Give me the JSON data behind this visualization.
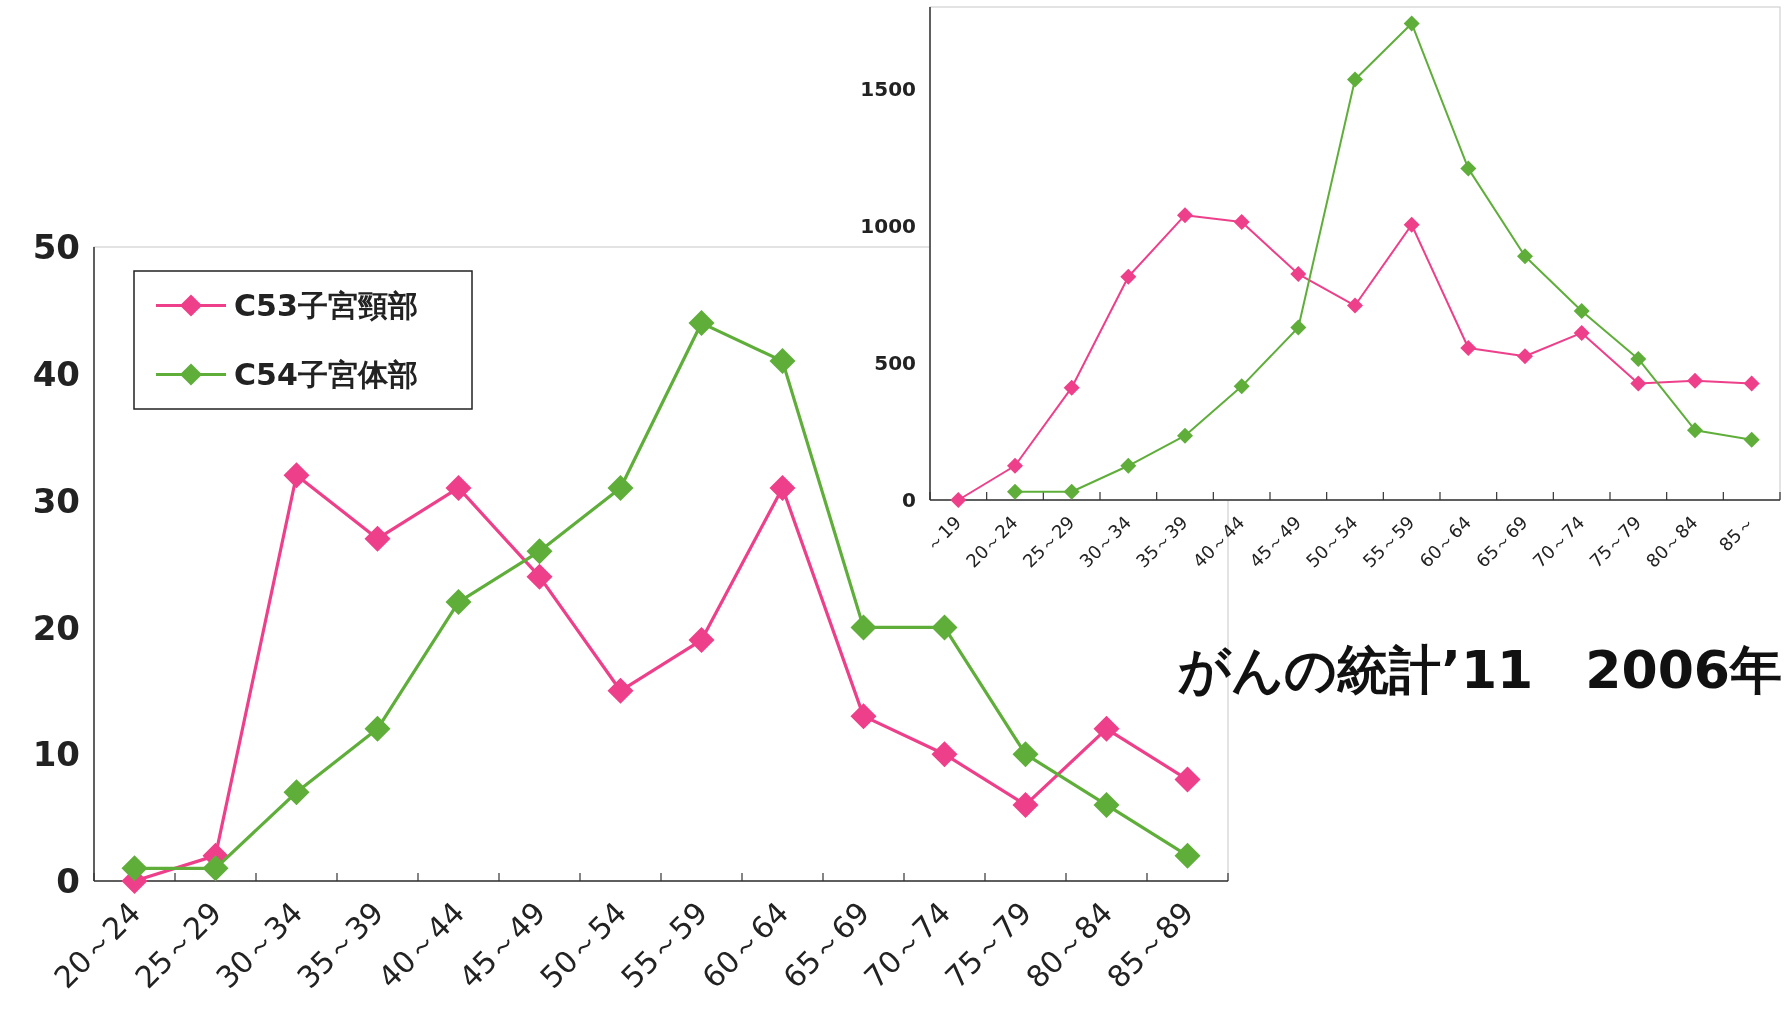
{
  "chart_data": [
    {
      "type": "line",
      "categories": [
        "20～24",
        "25～29",
        "30～34",
        "35～39",
        "40～44",
        "45～49",
        "50～54",
        "55～59",
        "60～64",
        "65～69",
        "70～74",
        "75～79",
        "80～84",
        "85～89"
      ],
      "series": [
        {
          "name": "C53子宮頸部",
          "color": "#ee3f8a",
          "values": [
            0,
            2,
            32,
            27,
            31,
            24,
            15,
            19,
            31,
            13,
            10,
            6,
            12,
            8
          ]
        },
        {
          "name": "C54子宮体部",
          "color": "#5fae3a",
          "values": [
            1,
            1,
            7,
            12,
            22,
            26,
            31,
            44,
            41,
            20,
            20,
            10,
            6,
            2
          ]
        }
      ],
      "ylim": [
        0,
        50
      ],
      "yticks": [
        0,
        10,
        20,
        30,
        40,
        50
      ],
      "legend": "top left",
      "marker": "diamond"
    },
    {
      "type": "line",
      "categories": [
        "～19",
        "20～24",
        "25～29",
        "30～34",
        "35～39",
        "40～44",
        "45～49",
        "50～54",
        "55～59",
        "60～64",
        "65～69",
        "70～74",
        "75～79",
        "80～84",
        "85～"
      ],
      "series": [
        {
          "color": "#ee3f8a",
          "values": [
            0,
            125,
            410,
            815,
            1040,
            1015,
            825,
            710,
            1005,
            555,
            525,
            610,
            425,
            435,
            425
          ]
        },
        {
          "color": "#5fae3a",
          "values": [
            null,
            30,
            30,
            125,
            235,
            415,
            630,
            1535,
            1740,
            1210,
            890,
            690,
            515,
            255,
            220
          ]
        }
      ],
      "ylim": [
        0,
        1800
      ],
      "yticks": [
        0,
        500,
        1000,
        1500
      ],
      "marker": "diamond",
      "annotations": [
        "がんの統計’11　2006年"
      ]
    }
  ]
}
